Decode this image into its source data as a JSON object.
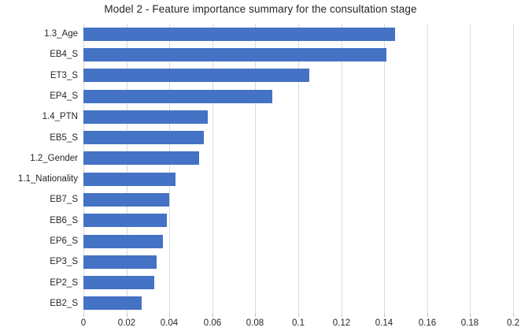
{
  "chart_data": {
    "type": "bar",
    "orientation": "horizontal",
    "title": "Model 2 - Feature importance summary for the consultation stage",
    "categories": [
      "1.3_Age",
      "EB4_S",
      "ET3_S",
      "EP4_S",
      "1.4_PTN",
      "EB5_S",
      "1.2_Gender",
      "1.1_Nationality",
      "EB7_S",
      "EB6_S",
      "EP6_S",
      "EP3_S",
      "EP2_S",
      "EB2_S"
    ],
    "values": [
      0.145,
      0.141,
      0.105,
      0.088,
      0.058,
      0.056,
      0.054,
      0.043,
      0.04,
      0.039,
      0.037,
      0.034,
      0.033,
      0.027
    ],
    "xlabel": "",
    "ylabel": "",
    "xlim": [
      0,
      0.2
    ],
    "x_ticks": [
      {
        "value": 0.0,
        "label": "0"
      },
      {
        "value": 0.02,
        "label": "0.02"
      },
      {
        "value": 0.04,
        "label": "0.04"
      },
      {
        "value": 0.06,
        "label": "0.06"
      },
      {
        "value": 0.08,
        "label": "0.08"
      },
      {
        "value": 0.1,
        "label": "0.1"
      },
      {
        "value": 0.12,
        "label": "0.12"
      },
      {
        "value": 0.14,
        "label": "0.14"
      },
      {
        "value": 0.16,
        "label": "0.16"
      },
      {
        "value": 0.18,
        "label": "0.18"
      },
      {
        "value": 0.2,
        "label": "0.2"
      }
    ],
    "grid": "vertical-on",
    "legend": "none",
    "bar_color": "#4472C4",
    "gridline_color": "#D9D9D9",
    "tick_color": "#BFBFBF",
    "text_color": "#262626",
    "background_color": "#FFFFFF"
  }
}
